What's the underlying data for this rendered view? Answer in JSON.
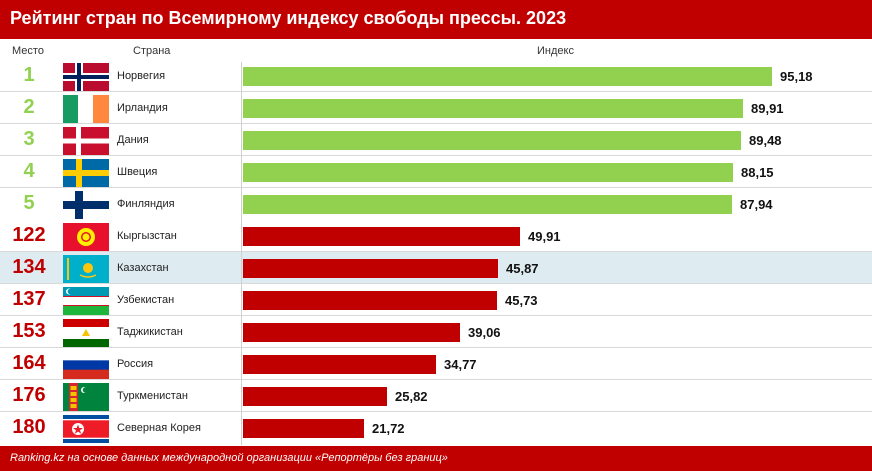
{
  "header": {
    "title": "Рейтинг стран по Всемирному индексу свободы прессы. 2023"
  },
  "columns": {
    "rank": "Место",
    "country": "Страна",
    "index": "Индекс"
  },
  "footer": {
    "source": "Ranking.kz на основе данных международной организации «Репортёры без границ»"
  },
  "colors": {
    "top": "#92d050",
    "central_asia": "#c00000",
    "highlight_row": "#deebf1"
  },
  "chart_data": {
    "type": "bar",
    "orientation": "horizontal",
    "title": "Рейтинг стран по Всемирному индексу свободы прессы. 2023",
    "xlim": [
      0,
      100
    ],
    "legend": "none",
    "rows": [
      {
        "rank": "1",
        "country": "Норвегия",
        "value": 95.18,
        "label": "95,18",
        "flag": "norway-flag",
        "group": "top"
      },
      {
        "rank": "2",
        "country": "Ирландия",
        "value": 89.91,
        "label": "89,91",
        "flag": "ireland-flag",
        "group": "top"
      },
      {
        "rank": "3",
        "country": "Дания",
        "value": 89.48,
        "label": "89,48",
        "flag": "denmark-flag",
        "group": "top"
      },
      {
        "rank": "4",
        "country": "Швеция",
        "value": 88.15,
        "label": "88,15",
        "flag": "sweden-flag",
        "group": "top"
      },
      {
        "rank": "5",
        "country": "Финляндия",
        "value": 87.94,
        "label": "87,94",
        "flag": "finland-flag",
        "group": "top"
      },
      {
        "rank": "122",
        "country": "Кыргызстан",
        "value": 49.91,
        "label": "49,91",
        "flag": "kyrgyzstan-flag",
        "group": "central_asia"
      },
      {
        "rank": "134",
        "country": "Казахстан",
        "value": 45.87,
        "label": "45,87",
        "flag": "kazakhstan-flag",
        "group": "central_asia",
        "highlight": true
      },
      {
        "rank": "137",
        "country": "Узбекистан",
        "value": 45.73,
        "label": "45,73",
        "flag": "uzbekistan-flag",
        "group": "central_asia"
      },
      {
        "rank": "153",
        "country": "Таджикистан",
        "value": 39.06,
        "label": "39,06",
        "flag": "tajikistan-flag",
        "group": "central_asia"
      },
      {
        "rank": "164",
        "country": "Россия",
        "value": 34.77,
        "label": "34,77",
        "flag": "russia-flag",
        "group": "central_asia"
      },
      {
        "rank": "176",
        "country": "Туркменистан",
        "value": 25.82,
        "label": "25,82",
        "flag": "turkmenistan-flag",
        "group": "central_asia"
      },
      {
        "rank": "180",
        "country": "Северная Корея",
        "value": 21.72,
        "label": "21,72",
        "flag": "north-korea-flag",
        "group": "central_asia"
      }
    ]
  }
}
